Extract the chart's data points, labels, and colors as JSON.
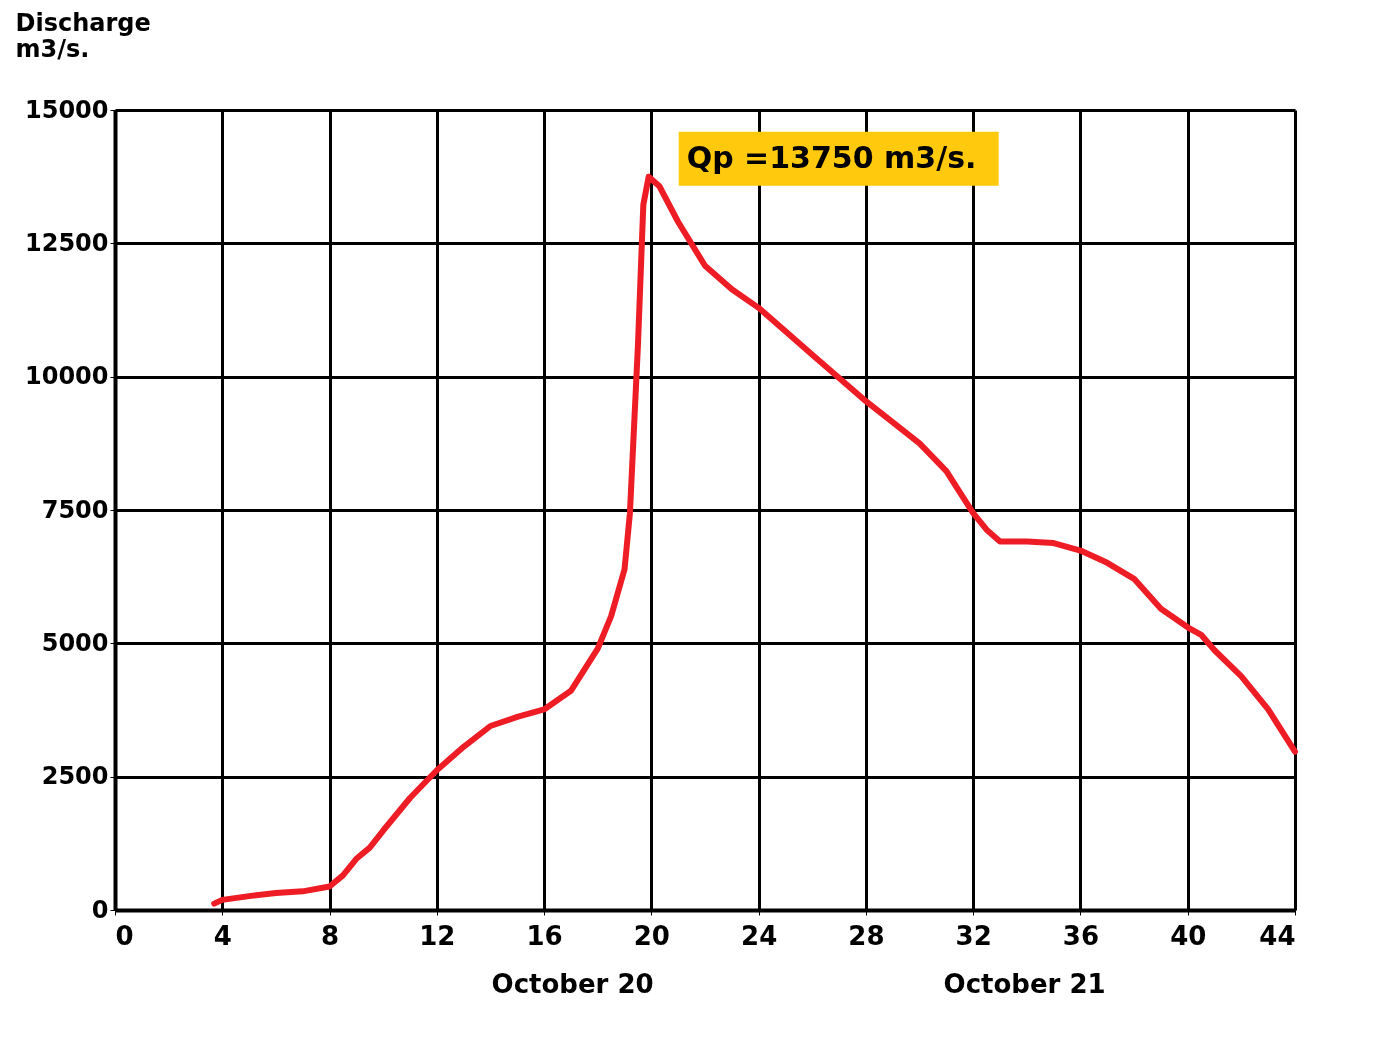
{
  "chart_data": {
    "type": "line",
    "ylabel": "Discharge\n m3/s.",
    "x": [
      3.7,
      4,
      5,
      6,
      7,
      8,
      8.5,
      9,
      9.5,
      10,
      11,
      12,
      13,
      14,
      15,
      16,
      17,
      18,
      18.5,
      19,
      19.2,
      19.5,
      19.7,
      19.9,
      20.3,
      21,
      22,
      23,
      24,
      25,
      26,
      28,
      30,
      31,
      32,
      32.5,
      33,
      34,
      35,
      36,
      37,
      38,
      39,
      40,
      40.5,
      41,
      42,
      43,
      44
    ],
    "series": [
      {
        "color": "#ee1c25",
        "values": [
          120,
          190,
          260,
          320,
          350,
          440,
          650,
          960,
          1170,
          1490,
          2100,
          2620,
          3060,
          3450,
          3620,
          3760,
          4110,
          4900,
          5510,
          6390,
          7440,
          10590,
          13220,
          13750,
          13570,
          12900,
          12080,
          11640,
          11290,
          10850,
          10410,
          9540,
          8750,
          8230,
          7440,
          7130,
          6910,
          6910,
          6880,
          6740,
          6510,
          6210,
          5650,
          5300,
          5160,
          4870,
          4380,
          3760,
          2970
        ]
      }
    ],
    "xlim": [
      0,
      44
    ],
    "xticks": [
      0,
      4,
      8,
      12,
      16,
      20,
      24,
      28,
      32,
      36,
      40,
      44
    ],
    "ylim": [
      0,
      15000
    ],
    "yticks": [
      0,
      2500,
      5000,
      7500,
      10000,
      12500,
      15000
    ],
    "grid": true,
    "marker": "none",
    "line_style": "solid",
    "legend": false,
    "annotations": [
      {
        "text": "Qp =13750 m3/s.",
        "x": 19.9,
        "y": 13750
      },
      "October 20",
      "October 21"
    ]
  }
}
